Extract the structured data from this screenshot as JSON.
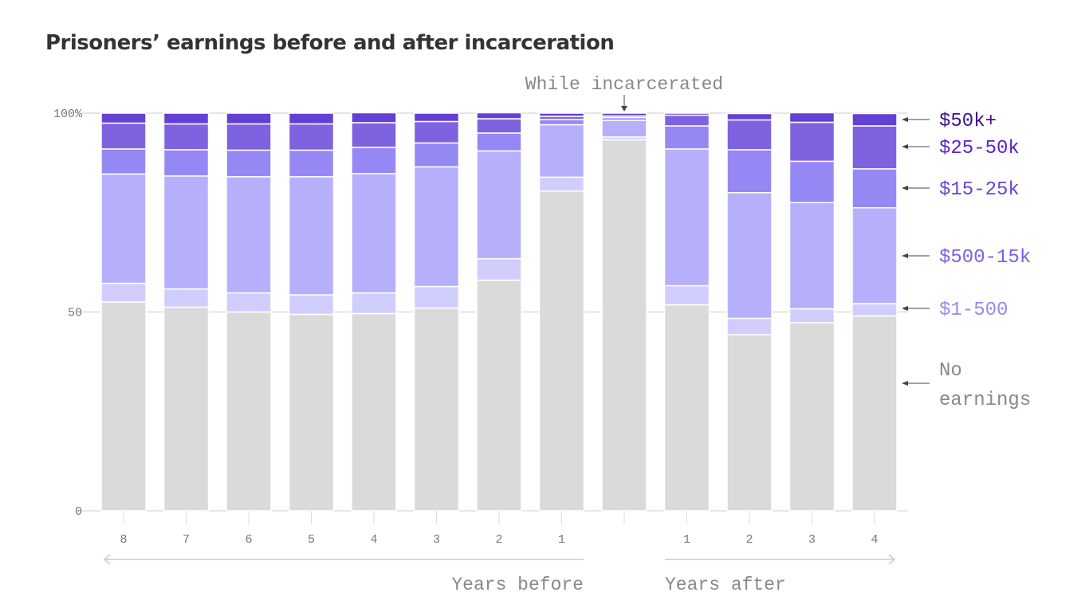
{
  "chart_data": {
    "type": "bar",
    "stacked": true,
    "title": "Prisoners’ earnings before and after incarceration",
    "annotation": "While incarcerated",
    "categories": [
      "8",
      "7",
      "6",
      "5",
      "4",
      "3",
      "2",
      "1",
      "",
      "1",
      "2",
      "3",
      "4"
    ],
    "group_labels": {
      "before": "Years before",
      "after": "Years after"
    },
    "yticks": [
      "0",
      "50",
      "100%"
    ],
    "ylim": [
      0,
      100
    ],
    "grid": true,
    "legend_placement": "right",
    "series": [
      {
        "name": "No earnings",
        "color": "#dadada",
        "label_color": "#888888",
        "values": [
          52.5,
          51.2,
          50.0,
          49.4,
          49.6,
          51.0,
          58.0,
          80.4,
          93.3,
          51.8,
          44.3,
          47.3,
          49.0
        ]
      },
      {
        "name": "$1-500",
        "color": "#d1cdfd",
        "label_color": "#9a86f6",
        "values": [
          4.7,
          4.6,
          4.8,
          4.9,
          5.2,
          5.4,
          5.4,
          3.5,
          0.7,
          4.8,
          4.1,
          3.5,
          3.1
        ]
      },
      {
        "name": "$500-15k",
        "color": "#b6b0fc",
        "label_color": "#7b5ee6",
        "values": [
          27.5,
          28.4,
          29.2,
          29.7,
          30.0,
          30.1,
          27.1,
          13.2,
          4.2,
          34.4,
          31.6,
          26.7,
          24.1
        ]
      },
      {
        "name": "$15-25k",
        "color": "#9688f4",
        "label_color": "#6a42d6",
        "values": [
          6.3,
          6.6,
          6.7,
          6.7,
          6.6,
          6.0,
          4.5,
          1.3,
          0.7,
          5.8,
          10.8,
          10.4,
          9.8
        ]
      },
      {
        "name": "$25-50k",
        "color": "#7e62e0",
        "label_color": "#5a22c8",
        "values": [
          6.5,
          6.5,
          6.6,
          6.6,
          6.2,
          5.4,
          3.6,
          0.8,
          0.4,
          2.7,
          7.5,
          9.8,
          10.8
        ]
      },
      {
        "name": "$50k+",
        "color": "#6440d4",
        "label_color": "#3e108e",
        "values": [
          2.5,
          2.7,
          2.7,
          2.7,
          2.5,
          2.1,
          1.5,
          0.8,
          0.7,
          0.5,
          1.6,
          2.4,
          3.1
        ]
      }
    ],
    "legend_lines": {
      "No earnings": [
        "No",
        "earnings"
      ]
    }
  }
}
